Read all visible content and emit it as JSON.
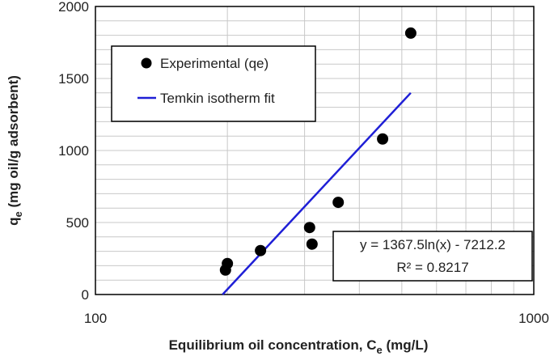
{
  "chart_data": {
    "type": "scatter",
    "xlabel": "Equilibrium oil concentration, C",
    "xlabel_sub": "e",
    "xlabel_unit": " (mg/L)",
    "ylabel": "q",
    "ylabel_sub": "e",
    "ylabel_unit": " (mg oil/g adsorbent)",
    "x_scale": "log",
    "xlim": [
      100,
      1000
    ],
    "ylim": [
      0,
      2000
    ],
    "x_ticks": [
      100,
      1000
    ],
    "x_tick_labels": [
      "100",
      "1000"
    ],
    "y_ticks": [
      0,
      500,
      1000,
      1500,
      2000
    ],
    "y_tick_labels": [
      "0",
      "500",
      "1000",
      "1500",
      "2000"
    ],
    "grid": true,
    "legend_position": "top-left",
    "series": [
      {
        "name": "Experimental (qe)",
        "kind": "marker",
        "color": "#000000",
        "x": [
          198,
          200,
          238,
          308,
          312,
          358,
          452,
          524
        ],
        "y": [
          170,
          215,
          305,
          465,
          350,
          640,
          1080,
          1815
        ]
      },
      {
        "name": "Temkin isotherm fit",
        "kind": "line",
        "color": "#1f1fd6",
        "x": [
          195,
          524
        ],
        "y": [
          0,
          1400
        ]
      }
    ],
    "annotation": {
      "equation": "y = 1367.5ln(x) - 7212.2",
      "r_squared": "R² = 0.8217"
    }
  }
}
